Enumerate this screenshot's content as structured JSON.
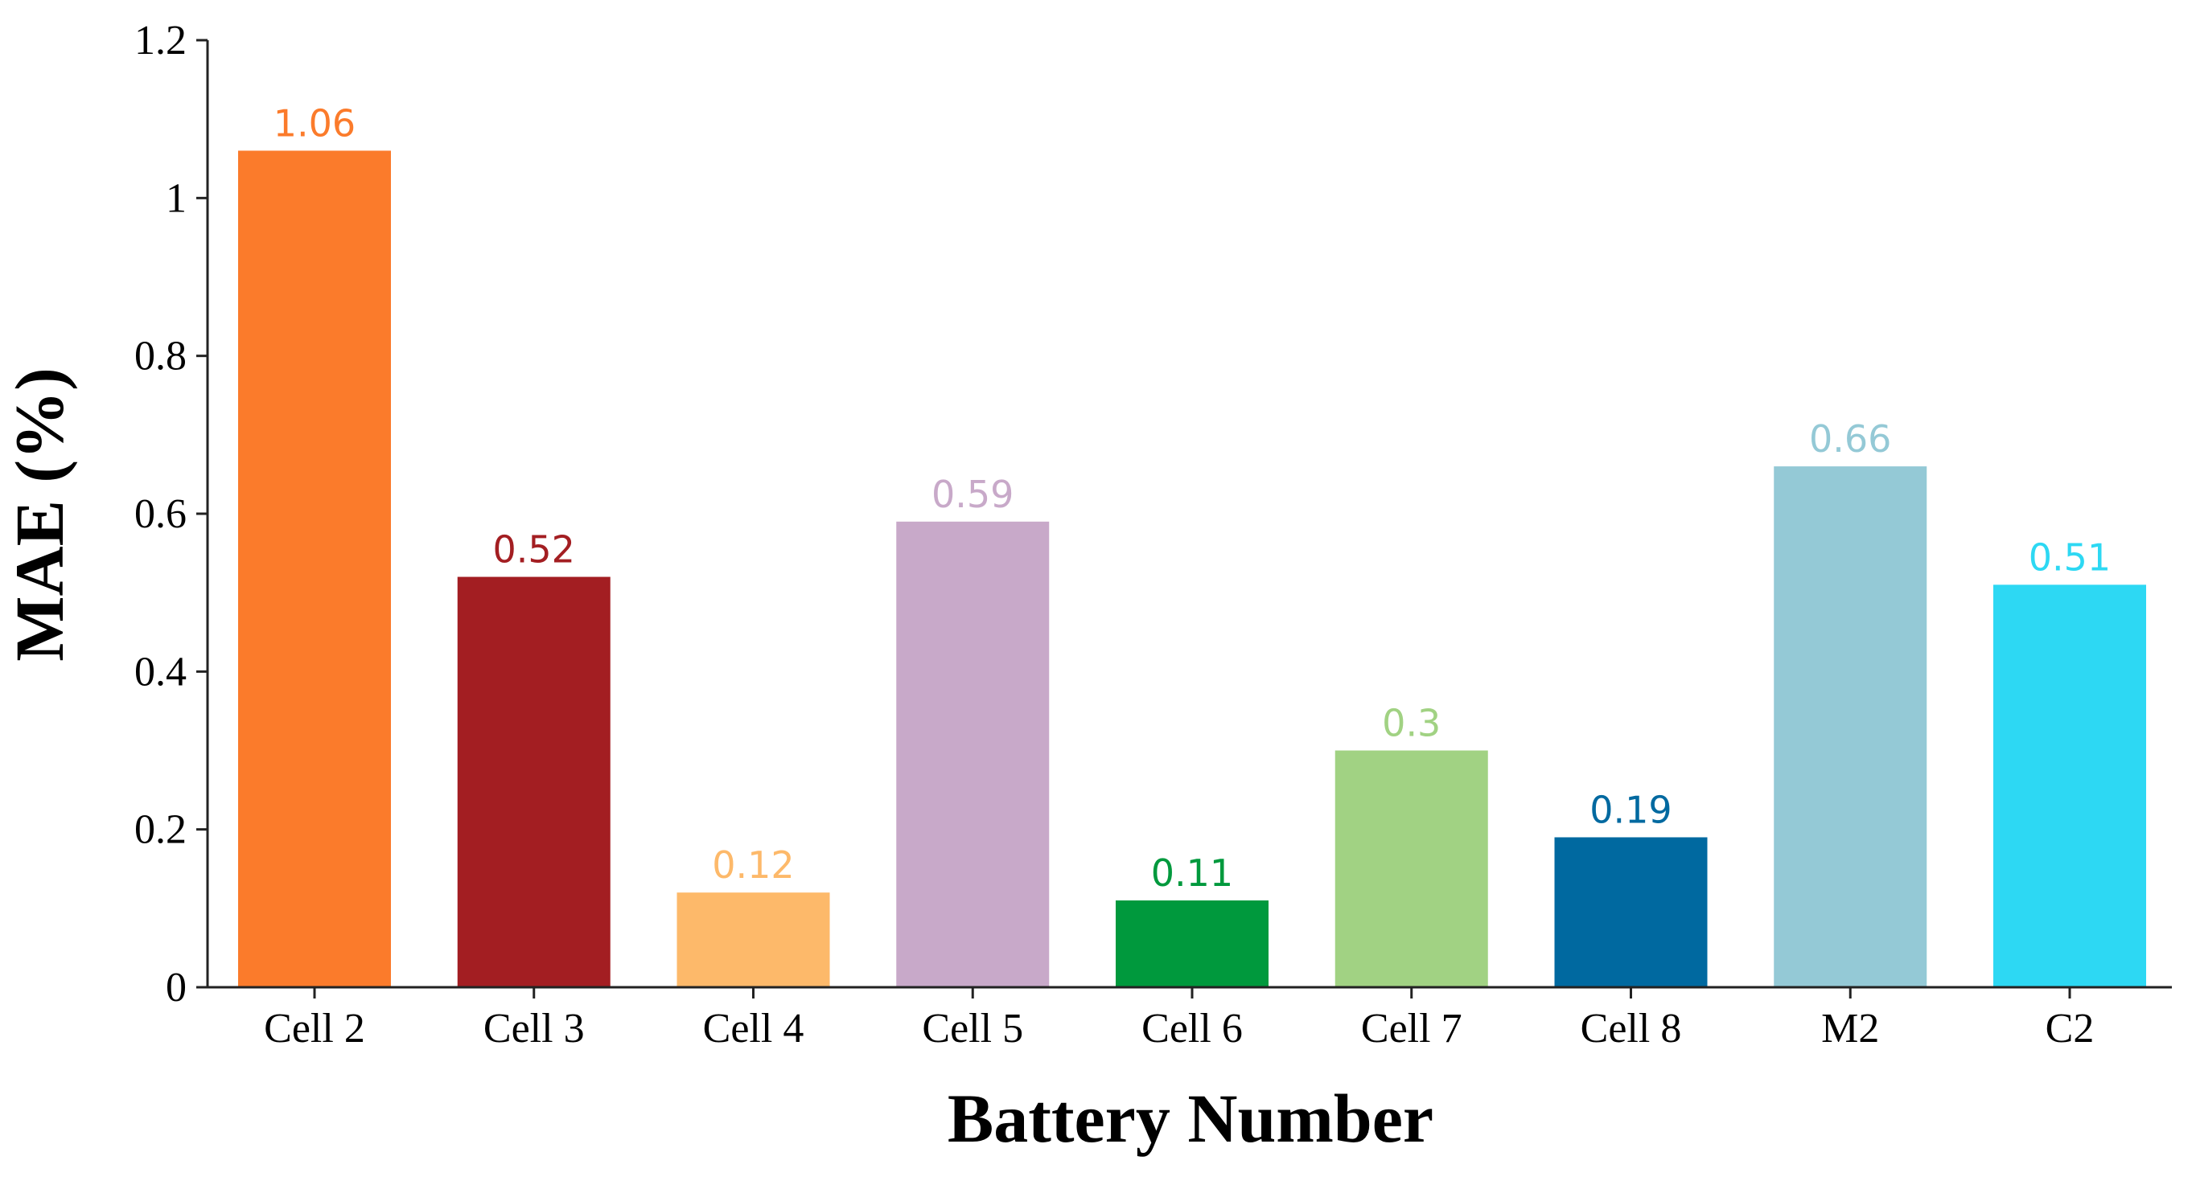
{
  "chart_data": {
    "type": "bar",
    "categories": [
      "Cell 2",
      "Cell 3",
      "Cell 4",
      "Cell 5",
      "Cell 6",
      "Cell 7",
      "Cell 8",
      "M2",
      "C2"
    ],
    "values": [
      1.06,
      0.52,
      0.12,
      0.59,
      0.11,
      0.3,
      0.19,
      0.66,
      0.51
    ],
    "data_labels": [
      "1.06",
      "0.52",
      "0.12",
      "0.59",
      "0.11",
      "0.3",
      "0.19",
      "0.66",
      "0.51"
    ],
    "colors": [
      "#fb7b2b",
      "#a31e22",
      "#fdb96a",
      "#c8a9c9",
      "#00993d",
      "#a1d283",
      "#0069a0",
      "#94c9d6",
      "#2dd8f3"
    ],
    "xlabel": "Battery Number",
    "ylabel": "MAE (%)",
    "ylim": [
      0,
      1.2
    ],
    "yticks": [
      0,
      0.2,
      0.4,
      0.6,
      0.8,
      1,
      1.2
    ],
    "ytick_labels": [
      "0",
      "0.2",
      "0.4",
      "0.6",
      "0.8",
      "1",
      "1.2"
    ],
    "grid": false,
    "legend": "none"
  }
}
